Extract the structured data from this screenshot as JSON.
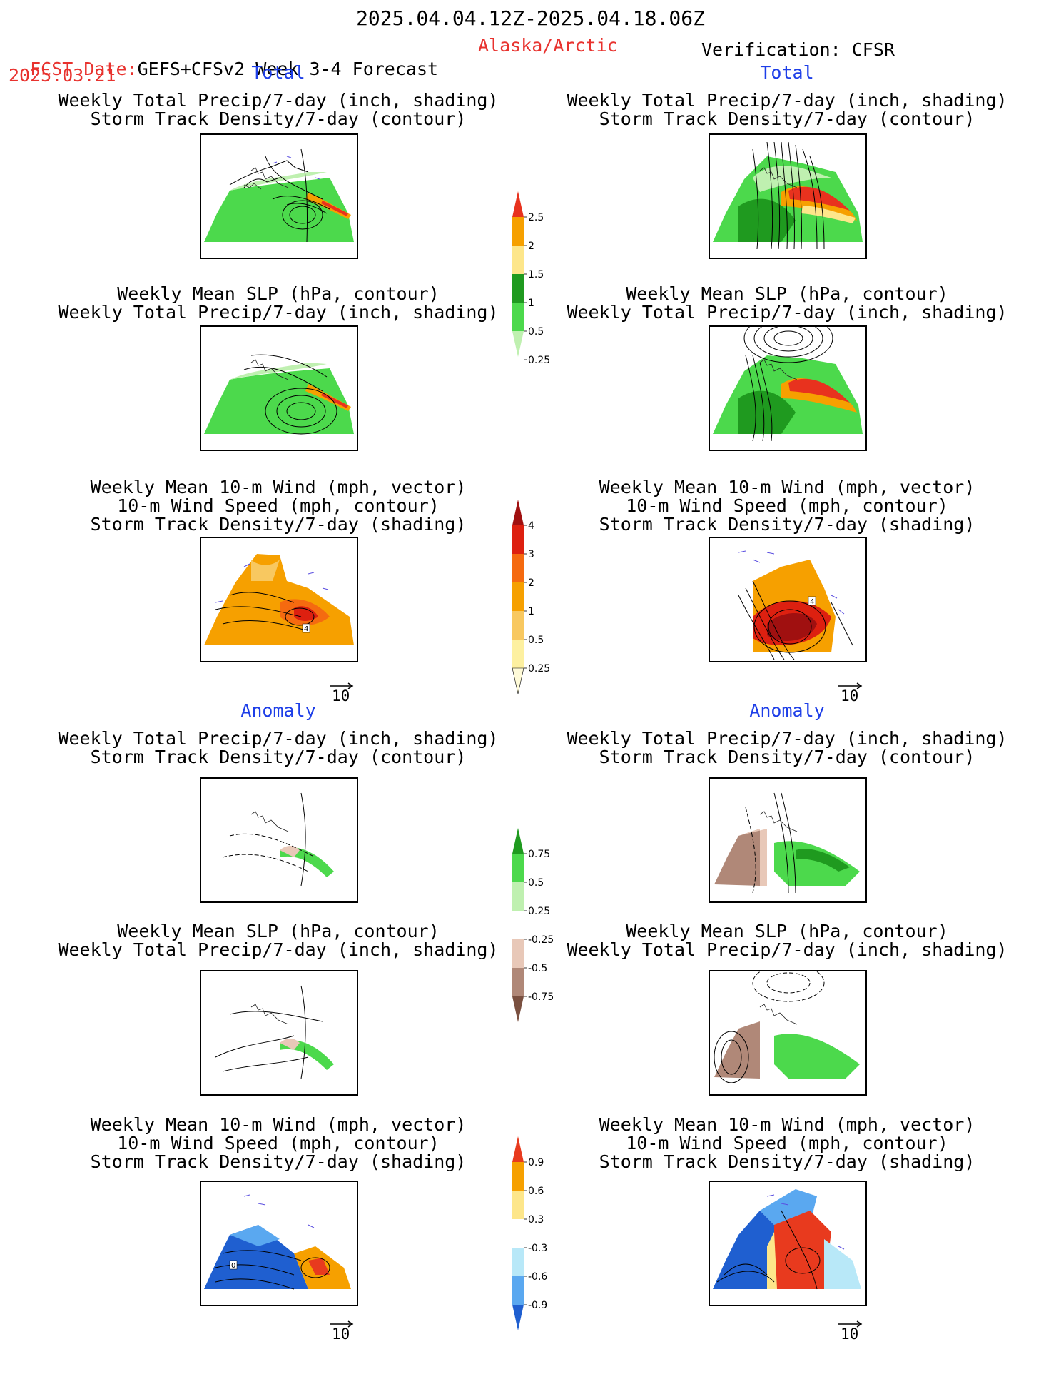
{
  "header": {
    "period": "2025.04.04.12Z-2025.04.18.06Z",
    "fcst_prefix": "FCST Date:",
    "model": "GEFS+CFSv2 Week 3-4 Forecast",
    "region": "Alaska/Arctic",
    "verification": "Verification: CFSR",
    "fcst_date": "2025.03.21"
  },
  "sections": {
    "total_label": "Total",
    "anomaly_label": "Anomaly"
  },
  "panels": {
    "precip_storm": [
      "Weekly Total Precip/7-day (inch, shading)",
      "Storm Track Density/7-day (contour)"
    ],
    "slp_precip": [
      "Weekly Mean SLP (hPa, contour)",
      "Weekly Total Precip/7-day (inch, shading)"
    ],
    "wind_storm": [
      "Weekly Mean 10-m Wind (mph, vector)",
      "10-m Wind Speed (mph, contour)",
      "Storm Track Density/7-day (shading)"
    ]
  },
  "vector_reference": "10",
  "map_annotations": {
    "storm_total_fcst": "4",
    "storm_total_obs": "4",
    "storm_anom_fcst": "0"
  },
  "colorbars": {
    "precip_total": {
      "labels": [
        "2.5",
        "2",
        "1.5",
        "1",
        "0.5",
        "0.25"
      ],
      "colors": [
        "#e8321e",
        "#f6a000",
        "#fde68a",
        "#1f9a1f",
        "#4cd94c",
        "#bff0b0"
      ]
    },
    "storm_total": {
      "labels": [
        "4",
        "3",
        "2",
        "1",
        "0.5",
        "0.25"
      ],
      "colors": [
        "#a01010",
        "#dd2010",
        "#f56a10",
        "#f6a000",
        "#f8c860",
        "#fdf0a0",
        "#fffbd8"
      ]
    },
    "precip_anom": {
      "labels": [
        "0.75",
        "0.5",
        "0.25",
        "-0.25",
        "-0.5",
        "-0.75"
      ],
      "colors": [
        "#1f9a1f",
        "#4cd94c",
        "#bff0b0",
        "#ffffff",
        "#e8c8b8",
        "#b08878",
        "#7a5040"
      ]
    },
    "storm_anom": {
      "labels": [
        "0.9",
        "0.6",
        "0.3",
        "-0.3",
        "-0.6",
        "-0.9"
      ],
      "colors": [
        "#e83a1e",
        "#f6a000",
        "#fde68a",
        "#ffffff",
        "#b8e8f8",
        "#5aa8f0",
        "#1f5fd0"
      ]
    }
  },
  "colors": {
    "header_red": "#e8322e",
    "section_blue": "#1d3ee8",
    "wind_vector": "#5a4ee0"
  }
}
